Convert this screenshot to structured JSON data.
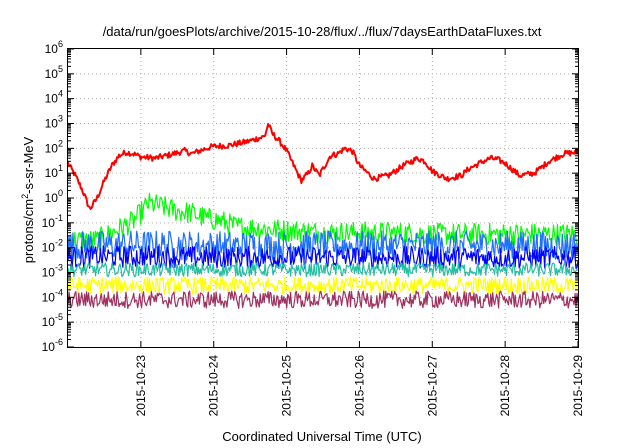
{
  "chart_data": {
    "type": "line",
    "title": "/data/run/goesPlots/archive/2015-10-28/flux/../flux/7daysEarthDataFluxes.txt",
    "xlabel": "Coordinated Universal Time (UTC)",
    "ylabel_parts": [
      "protons/cm",
      "2",
      "-s-sr-MeV"
    ],
    "y_scale": "log",
    "ylim": [
      1e-06,
      1000000.0
    ],
    "xlim": [
      0,
      7
    ],
    "grid": true,
    "legend": "none",
    "x_tick_labels": [
      "2015-10-23",
      "2015-10-24",
      "2015-10-25",
      "2015-10-26",
      "2015-10-27",
      "2015-10-28",
      "2015-10-29"
    ],
    "x_tick_positions": [
      1,
      2,
      3,
      4,
      5,
      6,
      7
    ],
    "y_tick_exponents": [
      -6,
      -5,
      -4,
      -3,
      -2,
      -1,
      0,
      1,
      2,
      3,
      4,
      5,
      6
    ],
    "x_unit_note": "x values are days from 2015-10-22 00:00 UTC",
    "series": [
      {
        "color": "#ff0000",
        "width": 2,
        "noise": 0.12,
        "x": [
          0,
          0.1,
          0.2,
          0.3,
          0.4,
          0.5,
          0.6,
          0.7,
          0.8,
          0.9,
          1.0,
          1.2,
          1.4,
          1.6,
          1.7,
          1.9,
          2.0,
          2.2,
          2.4,
          2.5,
          2.6,
          2.7,
          2.75,
          2.8,
          2.9,
          3.0,
          3.1,
          3.2,
          3.3,
          3.35,
          3.45,
          3.5,
          3.6,
          3.7,
          3.8,
          3.9,
          4.0,
          4.2,
          4.4,
          4.6,
          4.8,
          4.9,
          5.0,
          5.2,
          5.4,
          5.5,
          5.7,
          5.8,
          5.9,
          6.0,
          6.2,
          6.4,
          6.6,
          6.8,
          7.0
        ],
        "y": [
          25,
          8,
          2,
          0.35,
          1,
          5,
          20,
          50,
          70,
          60,
          45,
          40,
          55,
          80,
          60,
          100,
          120,
          130,
          170,
          200,
          250,
          300,
          1000,
          400,
          200,
          80,
          20,
          5,
          10,
          20,
          8,
          15,
          50,
          60,
          100,
          80,
          20,
          6,
          8,
          20,
          40,
          30,
          12,
          6,
          8,
          15,
          30,
          40,
          35,
          25,
          8,
          10,
          30,
          60,
          70
        ]
      },
      {
        "color": "#00ff00",
        "width": 1.2,
        "noise": 0.45,
        "x": [
          0,
          0.4,
          0.6,
          0.8,
          0.9,
          1.0,
          1.1,
          1.3,
          1.5,
          1.7,
          1.9,
          2.1,
          2.3,
          2.6,
          3.0,
          3.5,
          4.0,
          4.5,
          5.0,
          5.5,
          6.0,
          6.5,
          7.0
        ],
        "y": [
          0.02,
          0.02,
          0.04,
          0.08,
          0.12,
          0.25,
          0.6,
          0.45,
          0.3,
          0.25,
          0.15,
          0.12,
          0.07,
          0.06,
          0.05,
          0.04,
          0.04,
          0.04,
          0.035,
          0.035,
          0.035,
          0.035,
          0.035
        ]
      },
      {
        "color": "#1f6fff",
        "width": 1.2,
        "noise": 0.6,
        "x": [
          0,
          1,
          2,
          3,
          4,
          5,
          6,
          7
        ],
        "y": [
          0.012,
          0.013,
          0.012,
          0.012,
          0.012,
          0.012,
          0.012,
          0.012
        ]
      },
      {
        "color": "#0000ff",
        "width": 1.2,
        "noise": 0.45,
        "x": [
          0,
          1,
          2,
          3,
          4,
          5,
          6,
          7
        ],
        "y": [
          0.004,
          0.0045,
          0.004,
          0.004,
          0.004,
          0.004,
          0.004,
          0.004
        ]
      },
      {
        "color": "#20c0a0",
        "width": 1.2,
        "noise": 0.28,
        "x": [
          0,
          1,
          2,
          3,
          4,
          5,
          6,
          7
        ],
        "y": [
          0.0013,
          0.0013,
          0.0013,
          0.0013,
          0.0013,
          0.0013,
          0.0013,
          0.0013
        ]
      },
      {
        "color": "#ffff00",
        "width": 1.2,
        "noise": 0.35,
        "x": [
          0,
          1,
          2,
          3,
          4,
          5,
          6,
          7
        ],
        "y": [
          0.0003,
          0.0003,
          0.0003,
          0.0003,
          0.0003,
          0.0003,
          0.0003,
          0.0003
        ]
      },
      {
        "color": "#a03060",
        "width": 1.2,
        "noise": 0.35,
        "x": [
          0,
          1,
          2,
          3,
          4,
          5,
          6,
          7
        ],
        "y": [
          8e-05,
          8e-05,
          8e-05,
          8e-05,
          8e-05,
          8e-05,
          8e-05,
          8e-05
        ]
      }
    ]
  }
}
